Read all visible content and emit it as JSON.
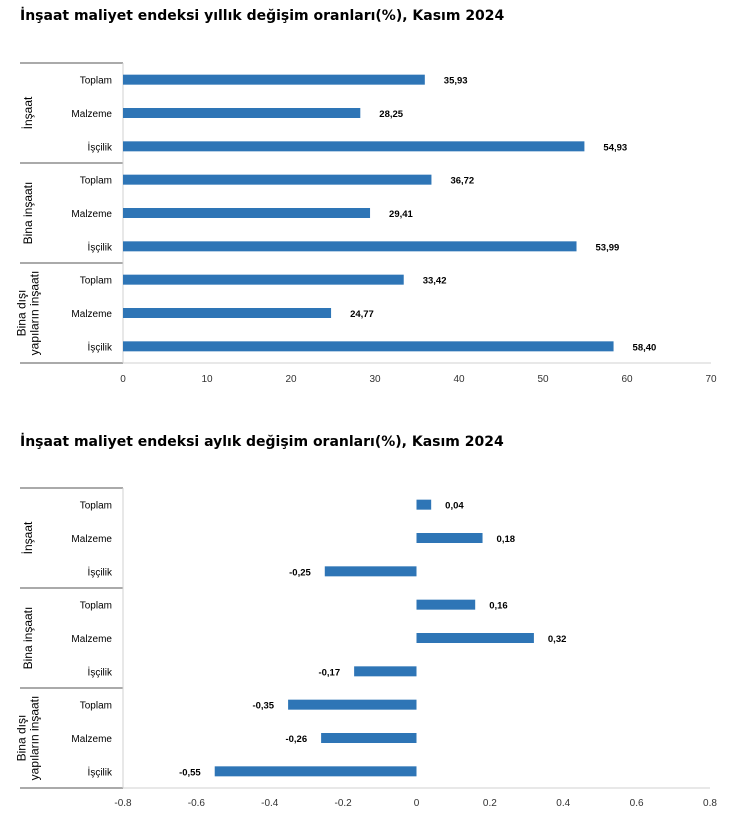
{
  "chart_data": [
    {
      "type": "bar",
      "orientation": "horizontal",
      "title": "İnşaat maliyet endeksi yıllık değişim oranları(%), Kasım 2024",
      "groups": [
        {
          "name": "İnşaat",
          "categories": [
            "Toplam",
            "Malzeme",
            "İşçilik"
          ],
          "values": [
            35.93,
            28.25,
            54.93
          ],
          "labels": [
            "35,93",
            "28,25",
            "54,93"
          ]
        },
        {
          "name": "Bina inşaatı",
          "categories": [
            "Toplam",
            "Malzeme",
            "İşçilik"
          ],
          "values": [
            36.72,
            29.41,
            53.99
          ],
          "labels": [
            "36,72",
            "29,41",
            "53,99"
          ]
        },
        {
          "name_lines": [
            "Bina dışı",
            "yapıların inşaatı"
          ],
          "categories": [
            "Toplam",
            "Malzeme",
            "İşçilik"
          ],
          "values": [
            33.42,
            24.77,
            58.4
          ],
          "labels": [
            "33,42",
            "24,77",
            "58,40"
          ]
        }
      ],
      "xlim": [
        0,
        70
      ],
      "xticks": [
        "0",
        "10",
        "20",
        "30",
        "40",
        "50",
        "60",
        "70"
      ],
      "xtick_values": [
        0,
        10,
        20,
        30,
        40,
        50,
        60,
        70
      ],
      "bar_color": "#2e75b6",
      "grid": false
    },
    {
      "type": "bar",
      "orientation": "horizontal",
      "title": "İnşaat maliyet endeksi aylık değişim oranları(%), Kasım 2024",
      "groups": [
        {
          "name": "İnşaat",
          "categories": [
            "Toplam",
            "Malzeme",
            "İşçilik"
          ],
          "values": [
            0.04,
            0.18,
            -0.25
          ],
          "labels": [
            "0,04",
            "0,18",
            "-0,25"
          ]
        },
        {
          "name": "Bina inşaatı",
          "categories": [
            "Toplam",
            "Malzeme",
            "İşçilik"
          ],
          "values": [
            0.16,
            0.32,
            -0.17
          ],
          "labels": [
            "0,16",
            "0,32",
            "-0,17"
          ]
        },
        {
          "name_lines": [
            "Bina dışı",
            "yapıların inşaatı"
          ],
          "categories": [
            "Toplam",
            "Malzeme",
            "İşçilik"
          ],
          "values": [
            -0.35,
            -0.26,
            -0.55
          ],
          "labels": [
            "-0,35",
            "-0,26",
            "-0,55"
          ]
        }
      ],
      "xlim": [
        -0.8,
        0.8
      ],
      "xticks": [
        "-0.8",
        "-0.6",
        "-0.4",
        "-0.2",
        "0",
        "0.2",
        "0.4",
        "0.6",
        "0.8"
      ],
      "xtick_values": [
        -0.8,
        -0.6,
        -0.4,
        -0.2,
        0,
        0.2,
        0.4,
        0.6,
        0.8
      ],
      "bar_color": "#2e75b6",
      "grid": false
    }
  ]
}
